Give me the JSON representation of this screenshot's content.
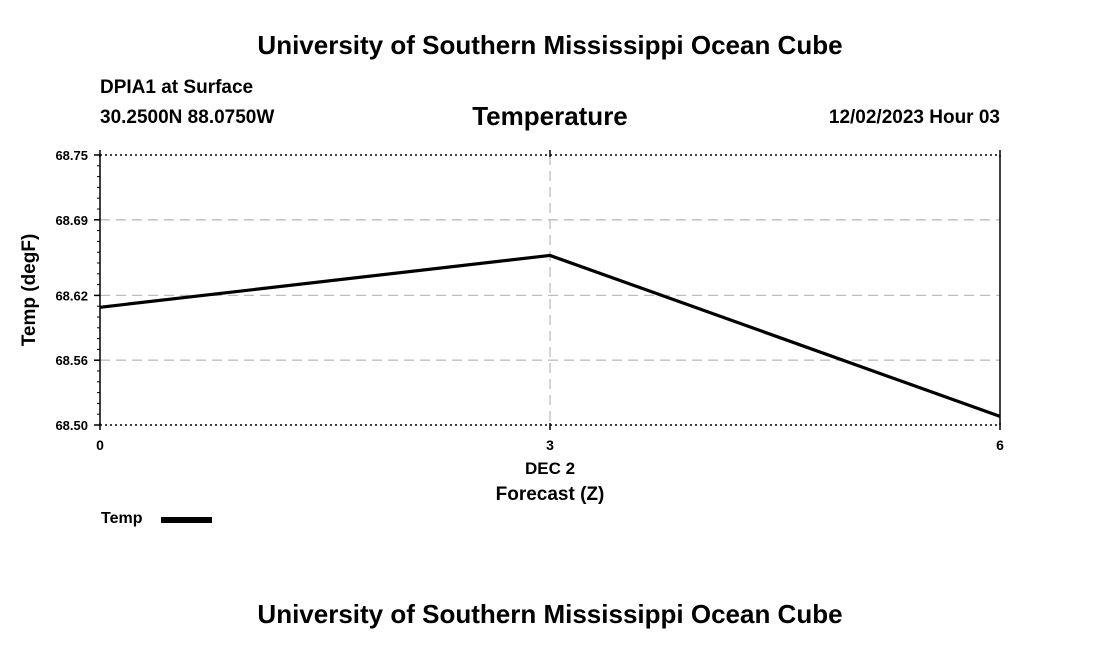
{
  "header": {
    "title": "University of Southern Mississippi Ocean Cube",
    "station": "DPIA1 at Surface",
    "coords": "30.2500N  88.0750W",
    "datetime": "12/02/2023 Hour 03",
    "footer_title": "University of Southern Mississippi Ocean Cube"
  },
  "chart_data": {
    "type": "line",
    "title": "Temperature",
    "xlabel": "Forecast (Z)",
    "xdate_label": "DEC 2",
    "ylabel": "Temp (degF)",
    "x": [
      0,
      3,
      6
    ],
    "xticks": [
      "0",
      "3",
      "6"
    ],
    "xlim": [
      0,
      6
    ],
    "ylim": [
      68.5,
      68.75
    ],
    "yticks": [
      "68.50",
      "68.56",
      "68.62",
      "68.69",
      "68.75"
    ],
    "grid": true,
    "series": [
      {
        "name": "Temp",
        "values": [
          68.609,
          68.657,
          68.508
        ],
        "color": "#000000"
      }
    ],
    "legend": "bottom-left"
  }
}
